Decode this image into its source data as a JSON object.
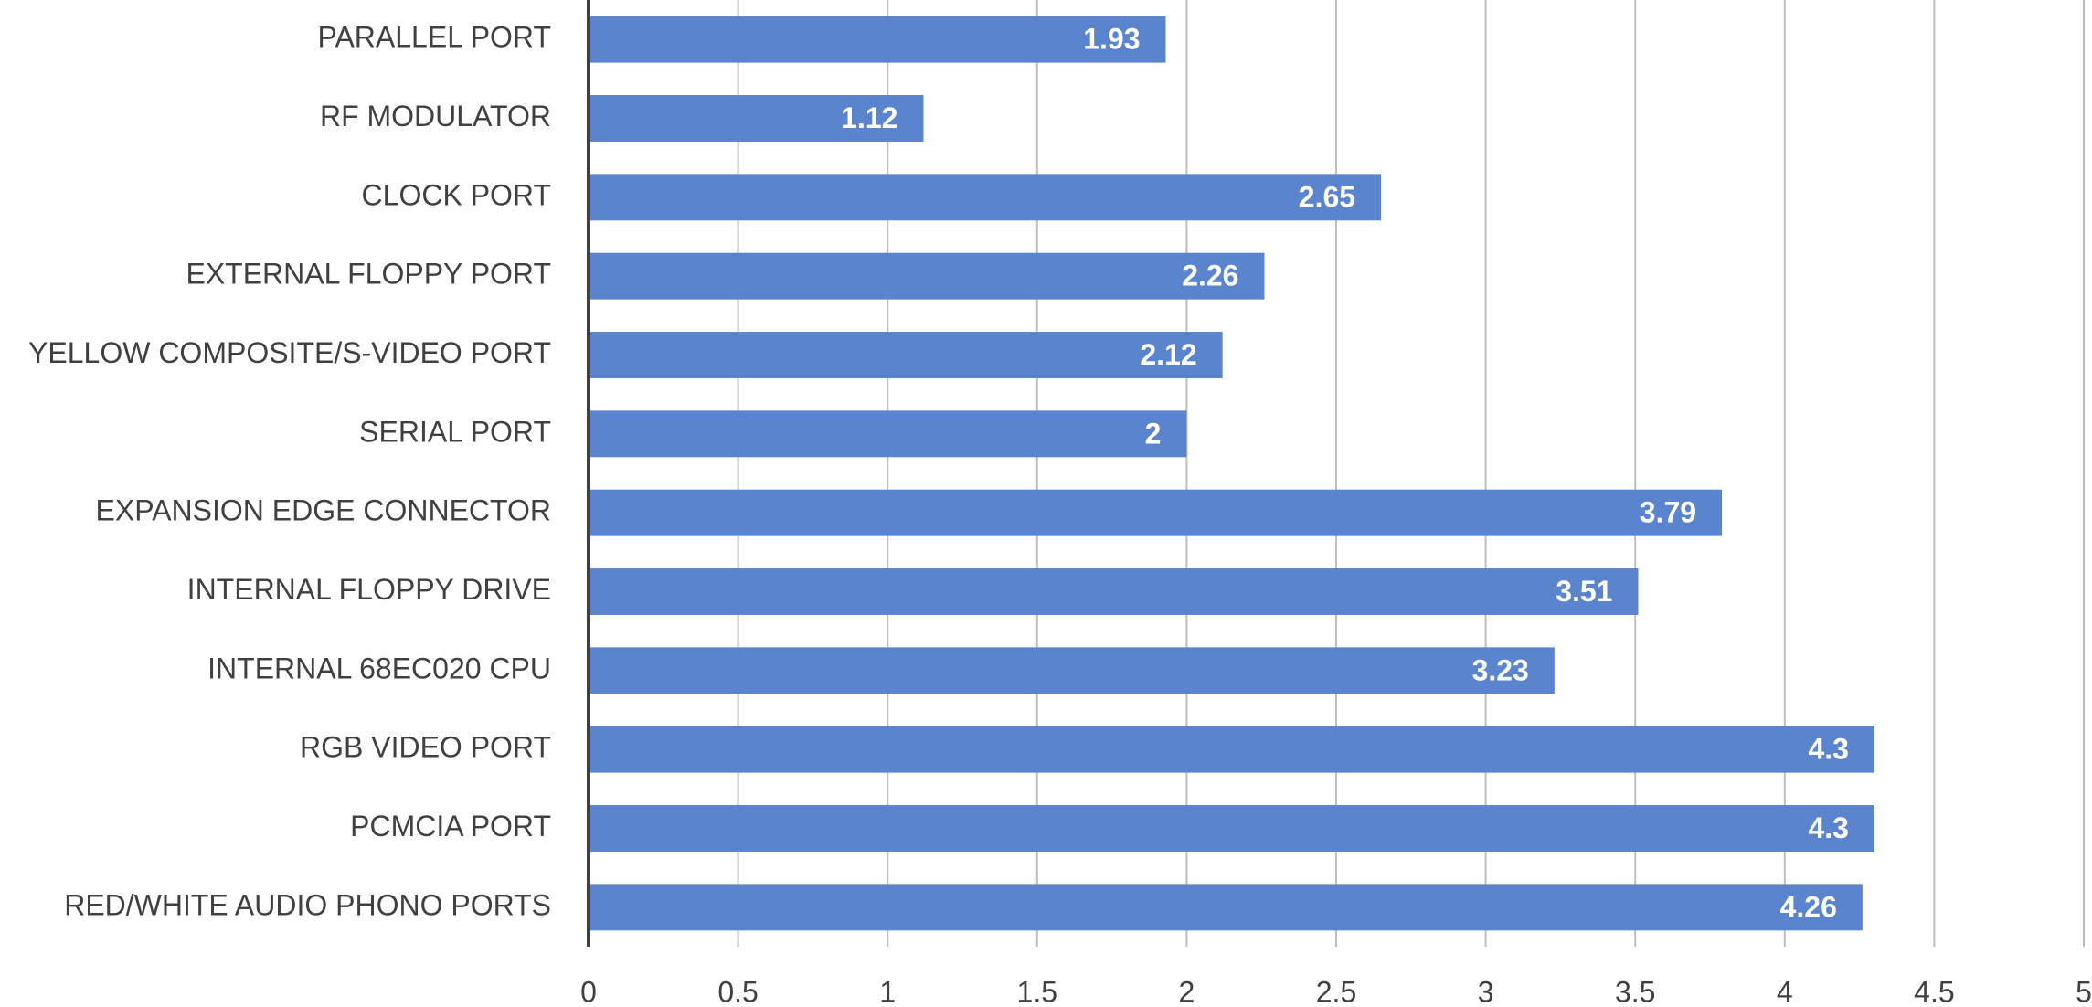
{
  "chart_data": {
    "type": "bar",
    "orientation": "horizontal",
    "categories": [
      "PARALLEL PORT",
      "RF MODULATOR",
      "CLOCK PORT",
      "EXTERNAL FLOPPY PORT",
      "YELLOW COMPOSITE/S-VIDEO PORT",
      "SERIAL PORT",
      "EXPANSION EDGE CONNECTOR",
      "INTERNAL FLOPPY DRIVE",
      "INTERNAL 68EC020 CPU",
      "RGB VIDEO PORT",
      "PCMCIA PORT",
      "RED/WHITE AUDIO PHONO PORTS"
    ],
    "values": [
      1.93,
      1.12,
      2.65,
      2.26,
      2.12,
      2,
      3.79,
      3.51,
      3.23,
      4.3,
      4.3,
      4.26
    ],
    "color": "#5b84cf",
    "xlim": [
      0,
      5
    ],
    "xticks": [
      0,
      0.5,
      1,
      1.5,
      2,
      2.5,
      3,
      3.5,
      4,
      4.5,
      5
    ],
    "grid": true
  }
}
